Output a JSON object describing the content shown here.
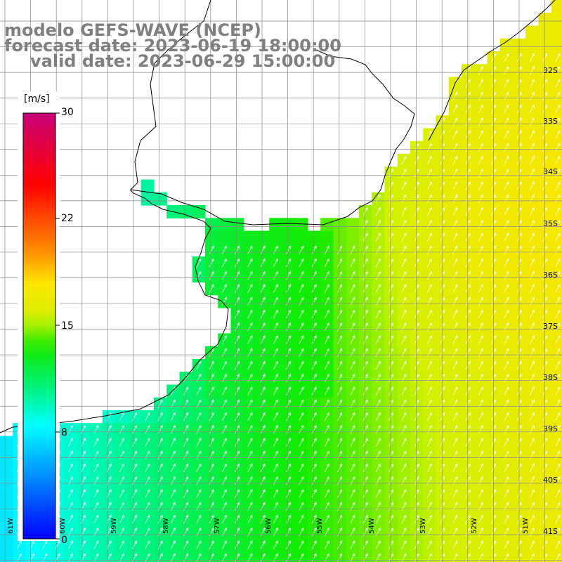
{
  "header": {
    "model": "modelo GEFS-WAVE (NCEP)",
    "forecast": "forecast date: 2023-06-19 18:00:00",
    "valid": "valid date: 2023-06-29 15:00:00"
  },
  "colorbar": {
    "unit": "[m/s]",
    "ticks": [
      "30",
      "22",
      "15",
      "8",
      "0"
    ],
    "range": [
      0,
      30
    ]
  },
  "lat_labels": [
    "32S",
    "33S",
    "34S",
    "35S",
    "36S",
    "37S",
    "38S",
    "39S",
    "40S",
    "41S"
  ],
  "lon_labels": [
    "61W",
    "60W",
    "59W",
    "58W",
    "57W",
    "56W",
    "55W",
    "54W",
    "53W",
    "52W",
    "51W"
  ],
  "colors": {
    "land": "#ffffff",
    "grid": "#888888",
    "coast": "#000000",
    "arrows": "#ffffff",
    "text": "#7f7f7f"
  },
  "map_data": {
    "variable": "wind speed",
    "units": "m/s",
    "lon_range": [
      -61.5,
      -50.5
    ],
    "lat_range": [
      -31.5,
      -41.5
    ],
    "speed_near_argentina_coast": 8,
    "speed_mid_shelf": 13,
    "speed_offshore_east": 17,
    "wind_direction": "towards north-northeast"
  }
}
